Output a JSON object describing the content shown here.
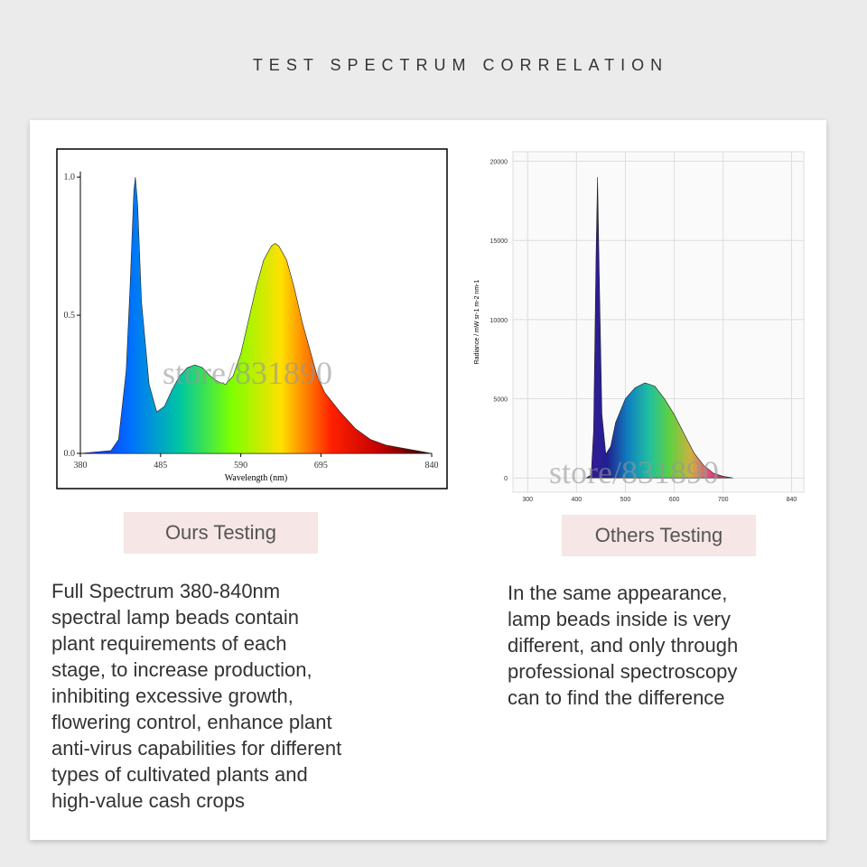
{
  "title": "TEST SPECTRUM CORRELATION",
  "watermark": "store/831890",
  "chart_data": [
    {
      "type": "area",
      "xlabel": "Wavelength (nm)",
      "x": [
        380,
        420,
        430,
        440,
        445,
        450,
        452,
        455,
        460,
        470,
        480,
        490,
        500,
        510,
        520,
        530,
        540,
        550,
        560,
        570,
        580,
        590,
        600,
        610,
        620,
        630,
        635,
        640,
        650,
        660,
        670,
        680,
        690,
        700,
        720,
        740,
        760,
        780,
        800,
        820,
        840
      ],
      "values": [
        0,
        0.01,
        0.05,
        0.3,
        0.6,
        0.95,
        1.0,
        0.9,
        0.55,
        0.25,
        0.15,
        0.17,
        0.23,
        0.28,
        0.31,
        0.32,
        0.31,
        0.28,
        0.26,
        0.25,
        0.28,
        0.36,
        0.48,
        0.6,
        0.7,
        0.75,
        0.76,
        0.75,
        0.7,
        0.6,
        0.48,
        0.38,
        0.28,
        0.22,
        0.15,
        0.09,
        0.05,
        0.03,
        0.02,
        0.01,
        0
      ],
      "colors": [
        "#1a1aff",
        "#0070ff",
        "#00c8a0",
        "#7cff00",
        "#ffe000",
        "#ff2000",
        "#c00000",
        "#200000"
      ],
      "xlim": [
        380,
        840
      ],
      "ylim": [
        0,
        1.02
      ],
      "xticks": [
        380,
        485,
        590,
        695,
        840
      ],
      "yticks": [
        {
          "value": 0,
          "label": "0.0"
        },
        {
          "value": 0.5,
          "label": "0.5"
        },
        {
          "value": 1,
          "label": "1.0"
        }
      ],
      "grid": false
    },
    {
      "type": "area",
      "ylabel": "Radiance / mW sr-1 m-2 nm-1",
      "x": [
        420,
        430,
        435,
        440,
        443,
        447,
        452,
        460,
        470,
        480,
        500,
        520,
        540,
        560,
        580,
        600,
        620,
        640,
        660,
        680,
        700,
        720
      ],
      "values": [
        0,
        200,
        3000,
        14000,
        19000,
        12000,
        4000,
        1500,
        2000,
        3500,
        5000,
        5700,
        6000,
        5800,
        5000,
        4000,
        2800,
        1600,
        800,
        300,
        100,
        0
      ],
      "colors": [
        "#3a1a9a",
        "#202090",
        "#1080c0",
        "#20c0a0",
        "#60d040",
        "#d0b040",
        "#e04080",
        "#a0205a"
      ],
      "xlim": [
        270,
        865
      ],
      "ylim": [
        -900,
        20600
      ],
      "xticks": [
        300,
        400,
        500,
        600,
        700,
        840
      ],
      "yticks": [
        0,
        5000,
        10000,
        15000,
        20000
      ],
      "grid": true
    }
  ],
  "panels": [
    {
      "label": "Ours Testing",
      "lines": [
        "Full Spectrum 380-840nm",
        "spectral lamp beads contain",
        "plant requirements of each",
        "stage, to increase production,",
        "inhibiting excessive growth,",
        "flowering control, enhance plant",
        "anti-virus capabilities for different",
        "types of cultivated plants and",
        "high-value cash crops"
      ]
    },
    {
      "label": "Others Testing",
      "lines": [
        "In the same appearance,",
        "lamp beads inside is very",
        "different, and only through",
        "professional spectroscopy",
        "can to find the difference"
      ]
    }
  ]
}
